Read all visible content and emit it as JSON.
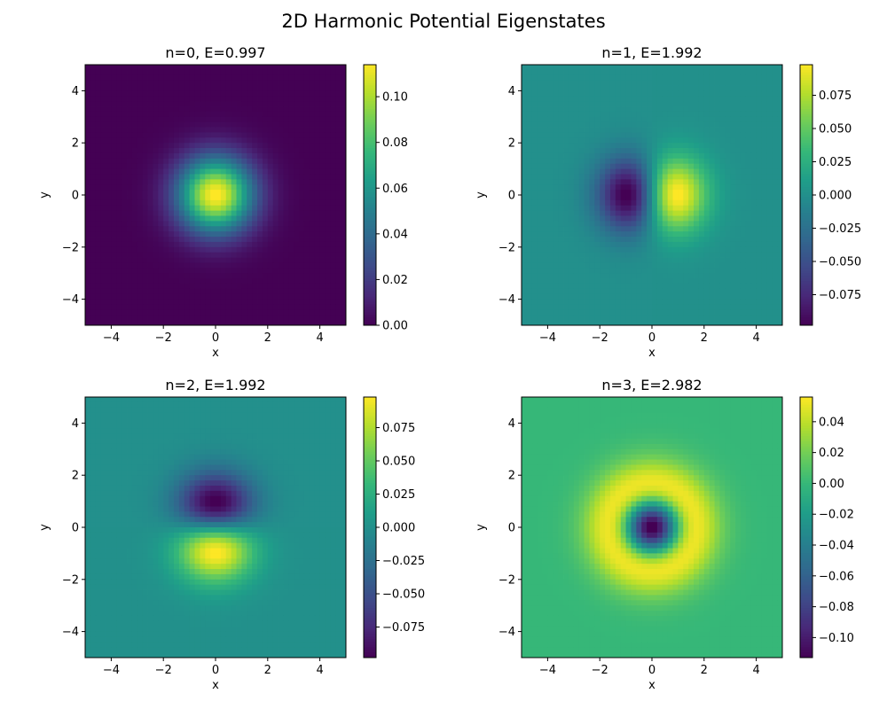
{
  "figure": {
    "suptitle": "2D Harmonic Potential Eigenstates",
    "colormap": "viridis"
  },
  "chart_data": [
    {
      "type": "heatmap",
      "title": "n=0, E=0.997",
      "xlabel": "x",
      "ylabel": "y",
      "xlim": [
        -5,
        5
      ],
      "ylim": [
        -5,
        5
      ],
      "xticks": [
        -4,
        -2,
        0,
        2,
        4
      ],
      "yticks": [
        -4,
        -2,
        0,
        2,
        4
      ],
      "xtick_labels": [
        "−4",
        "−2",
        "0",
        "2",
        "4"
      ],
      "ytick_labels": [
        "−4",
        "−2",
        "0",
        "2",
        "4"
      ],
      "grid_size": 50,
      "state": "ground",
      "peak_value": 0.114,
      "value_range": [
        0,
        0.114
      ],
      "colorbar_ticks": [
        0,
        0.02,
        0.04,
        0.06,
        0.08,
        0.1
      ],
      "colorbar_labels": [
        "0.00",
        "0.02",
        "0.04",
        "0.06",
        "0.08",
        "0.10"
      ]
    },
    {
      "type": "heatmap",
      "title": "n=1, E=1.992",
      "xlabel": "x",
      "ylabel": "y",
      "xlim": [
        -5,
        5
      ],
      "ylim": [
        -5,
        5
      ],
      "xticks": [
        -4,
        -2,
        0,
        2,
        4
      ],
      "yticks": [
        -4,
        -2,
        0,
        2,
        4
      ],
      "xtick_labels": [
        "−4",
        "−2",
        "0",
        "2",
        "4"
      ],
      "ytick_labels": [
        "−4",
        "−2",
        "0",
        "2",
        "4"
      ],
      "grid_size": 50,
      "state": "first-excited-x",
      "peak_value": 0.098,
      "value_range": [
        -0.098,
        0.098
      ],
      "colorbar_ticks": [
        -0.075,
        -0.05,
        -0.025,
        0,
        0.025,
        0.05,
        0.075
      ],
      "colorbar_labels": [
        "−0.075",
        "−0.050",
        "−0.025",
        "0.000",
        "0.025",
        "0.050",
        "0.075"
      ]
    },
    {
      "type": "heatmap",
      "title": "n=2, E=1.992",
      "xlabel": "x",
      "ylabel": "y",
      "xlim": [
        -5,
        5
      ],
      "ylim": [
        -5,
        5
      ],
      "xticks": [
        -4,
        -2,
        0,
        2,
        4
      ],
      "yticks": [
        -4,
        -2,
        0,
        2,
        4
      ],
      "xtick_labels": [
        "−4",
        "−2",
        "0",
        "2",
        "4"
      ],
      "ytick_labels": [
        "−4",
        "−2",
        "0",
        "2",
        "4"
      ],
      "grid_size": 50,
      "state": "first-excited-y-inverted",
      "peak_value": 0.098,
      "value_range": [
        -0.098,
        0.098
      ],
      "colorbar_ticks": [
        -0.075,
        -0.05,
        -0.025,
        0,
        0.025,
        0.05,
        0.075
      ],
      "colorbar_labels": [
        "−0.075",
        "−0.050",
        "−0.025",
        "0.000",
        "0.025",
        "0.050",
        "0.075"
      ]
    },
    {
      "type": "heatmap",
      "title": "n=3, E=2.982",
      "xlabel": "x",
      "ylabel": "y",
      "xlim": [
        -5,
        5
      ],
      "ylim": [
        -5,
        5
      ],
      "xticks": [
        -4,
        -2,
        0,
        2,
        4
      ],
      "yticks": [
        -4,
        -2,
        0,
        2,
        4
      ],
      "xtick_labels": [
        "−4",
        "−2",
        "0",
        "2",
        "4"
      ],
      "ytick_labels": [
        "−4",
        "−2",
        "0",
        "2",
        "4"
      ],
      "grid_size": 50,
      "state": "radial-ring",
      "value_range": [
        -0.113,
        0.056
      ],
      "colorbar_ticks": [
        -0.1,
        -0.08,
        -0.06,
        -0.04,
        -0.02,
        0,
        0.02,
        0.04
      ],
      "colorbar_labels": [
        "−0.10",
        "−0.08",
        "−0.06",
        "−0.04",
        "−0.02",
        "0.00",
        "0.02",
        "0.04"
      ]
    }
  ]
}
